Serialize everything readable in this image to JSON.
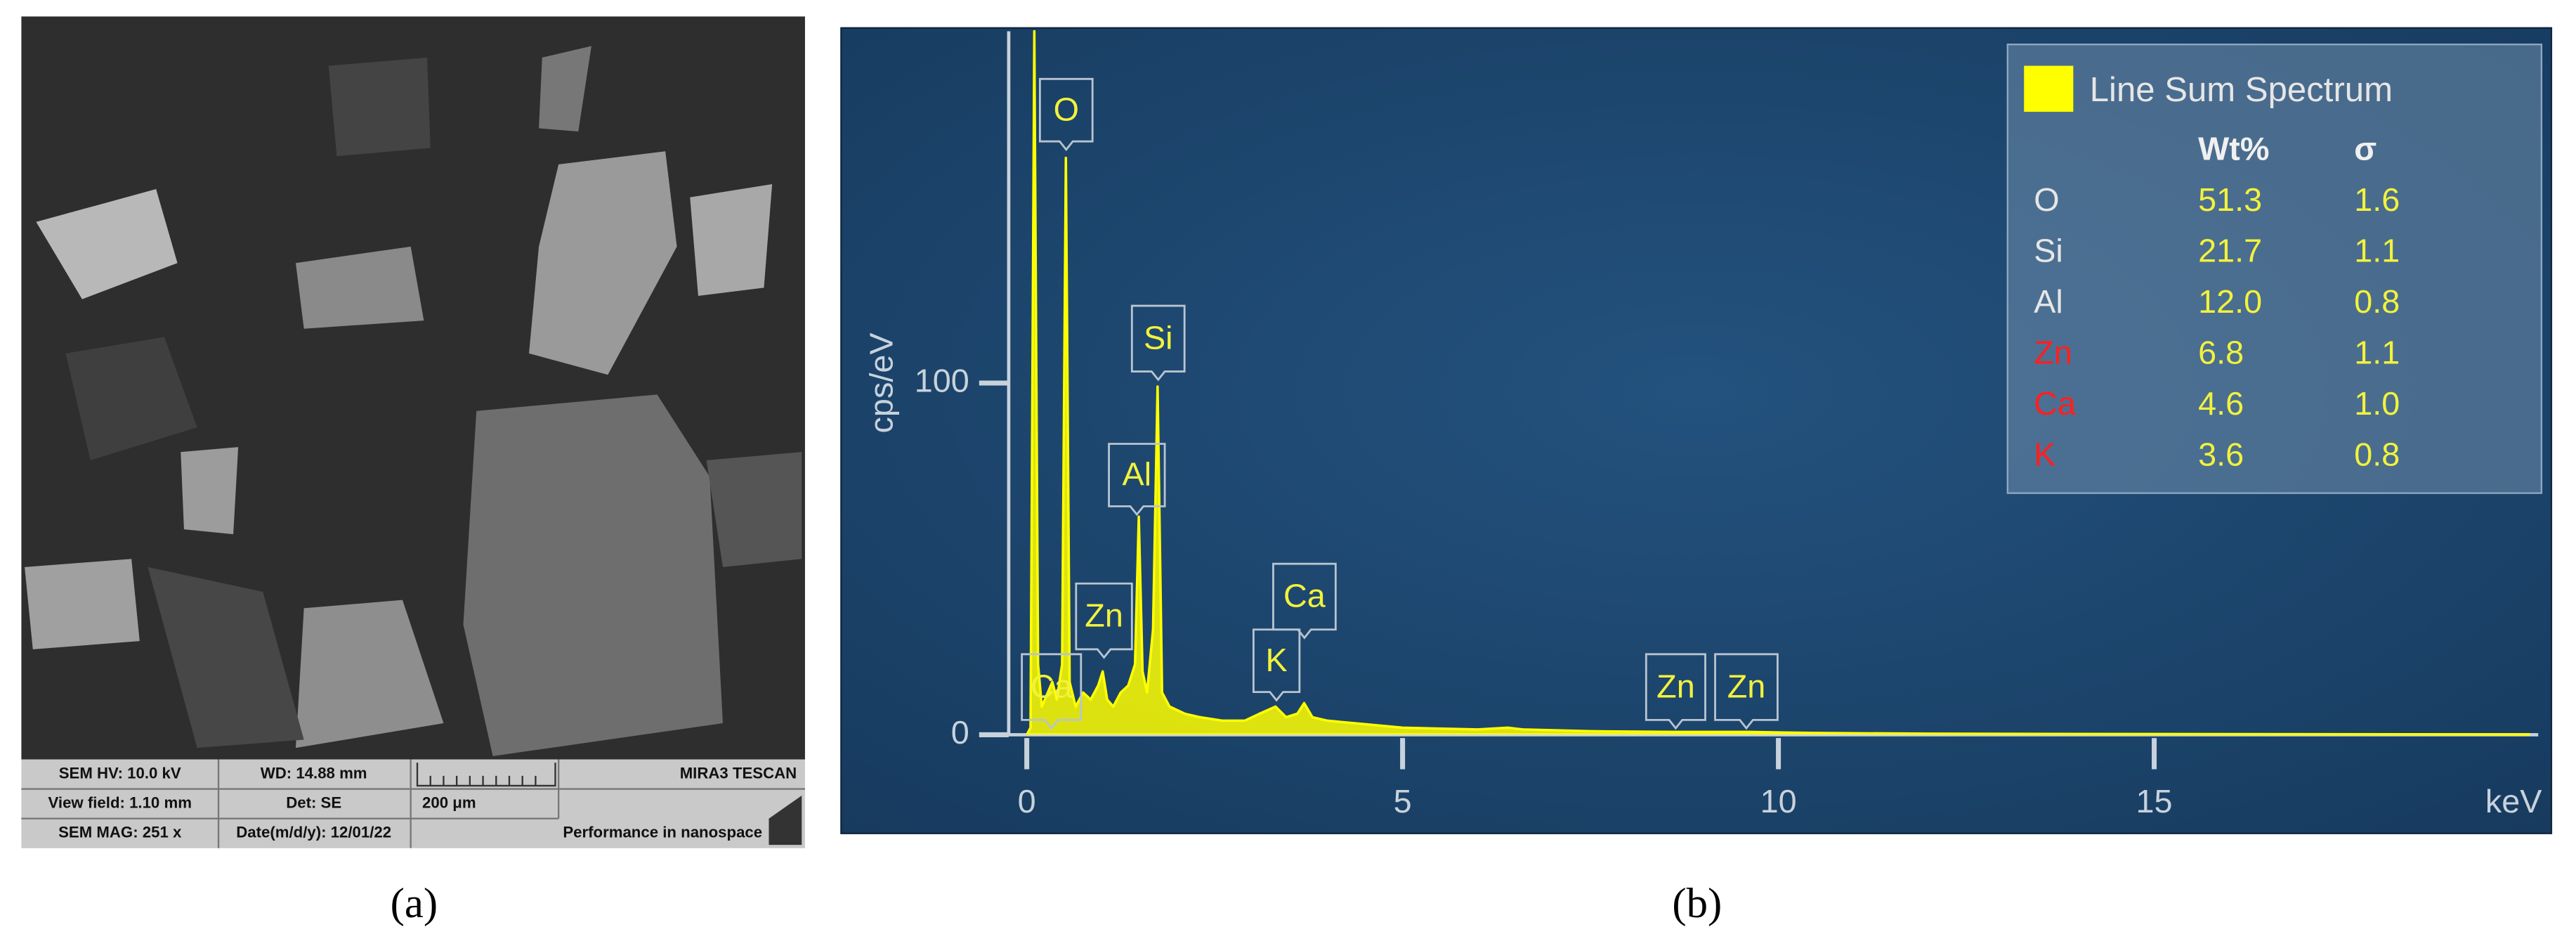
{
  "sem_panel": {
    "info": [
      "SEM HV: 10.0 kV",
      "WD: 14.88 mm",
      "MIRA3 TESCAN",
      "View field: 1.10 mm",
      "Det: SE",
      "200 μm",
      "SEM MAG: 251 x",
      "Date(m/d/y): 12/01/22",
      "Performance in nanospace"
    ],
    "caption": "(a)"
  },
  "chart_data": {
    "type": "line",
    "caption": "(b)",
    "x_label": "keV",
    "y_label": "cps/eV",
    "x": [
      0,
      0.05,
      0.1,
      0.15,
      0.2,
      0.28,
      0.34,
      0.4,
      0.47,
      0.52,
      0.57,
      0.65,
      0.75,
      0.85,
      0.95,
      1.01,
      1.07,
      1.15,
      1.25,
      1.35,
      1.44,
      1.49,
      1.54,
      1.6,
      1.68,
      1.74,
      1.8,
      1.9,
      2.1,
      2.3,
      2.6,
      2.9,
      3.1,
      3.31,
      3.45,
      3.6,
      3.69,
      3.8,
      4.0,
      4.5,
      5.0,
      6.0,
      6.4,
      6.6,
      7.5,
      8.6,
      9.6,
      10.5,
      12,
      15,
      20
    ],
    "series": [
      {
        "name": "Line Sum Spectrum",
        "color": "#ffff00",
        "values": [
          0,
          2,
          200,
          20,
          8,
          12,
          15,
          10,
          20,
          164,
          15,
          8,
          12,
          10,
          14,
          18,
          10,
          8,
          12,
          14,
          20,
          62,
          18,
          12,
          30,
          99,
          12,
          8,
          6,
          5,
          4,
          4,
          6,
          8,
          5,
          6,
          9,
          5,
          4,
          3,
          2,
          1.5,
          2,
          1.5,
          1,
          0.8,
          0.8,
          0.5,
          0.3,
          0.2,
          0.1
        ]
      }
    ],
    "xlim": [
      0,
      20
    ],
    "xticks": [
      0,
      5,
      10,
      15
    ],
    "ylim": [
      0,
      200
    ],
    "yticks": [
      0,
      100
    ],
    "annotations": [
      "O",
      "Si",
      "Al",
      "Zn",
      "Ca",
      "K",
      "Ca",
      "Zn",
      "Zn"
    ],
    "table": {
      "columns": [
        "Wt%",
        "σ"
      ],
      "rows": [
        {
          "element": "O",
          "color": "#e6e6e6",
          "wt": "51.3",
          "sigma": "1.6"
        },
        {
          "element": "Si",
          "color": "#e6e6e6",
          "wt": "21.7",
          "sigma": "1.1"
        },
        {
          "element": "Al",
          "color": "#e6e6e6",
          "wt": "12.0",
          "sigma": "0.8"
        },
        {
          "element": "Zn",
          "color": "#ff2020",
          "wt": "6.8",
          "sigma": "1.1"
        },
        {
          "element": "Ca",
          "color": "#ff2020",
          "wt": "4.6",
          "sigma": "1.0"
        },
        {
          "element": "K",
          "color": "#ff2020",
          "wt": "3.6",
          "sigma": "0.8"
        }
      ],
      "value_color": "#f2f23c"
    }
  }
}
